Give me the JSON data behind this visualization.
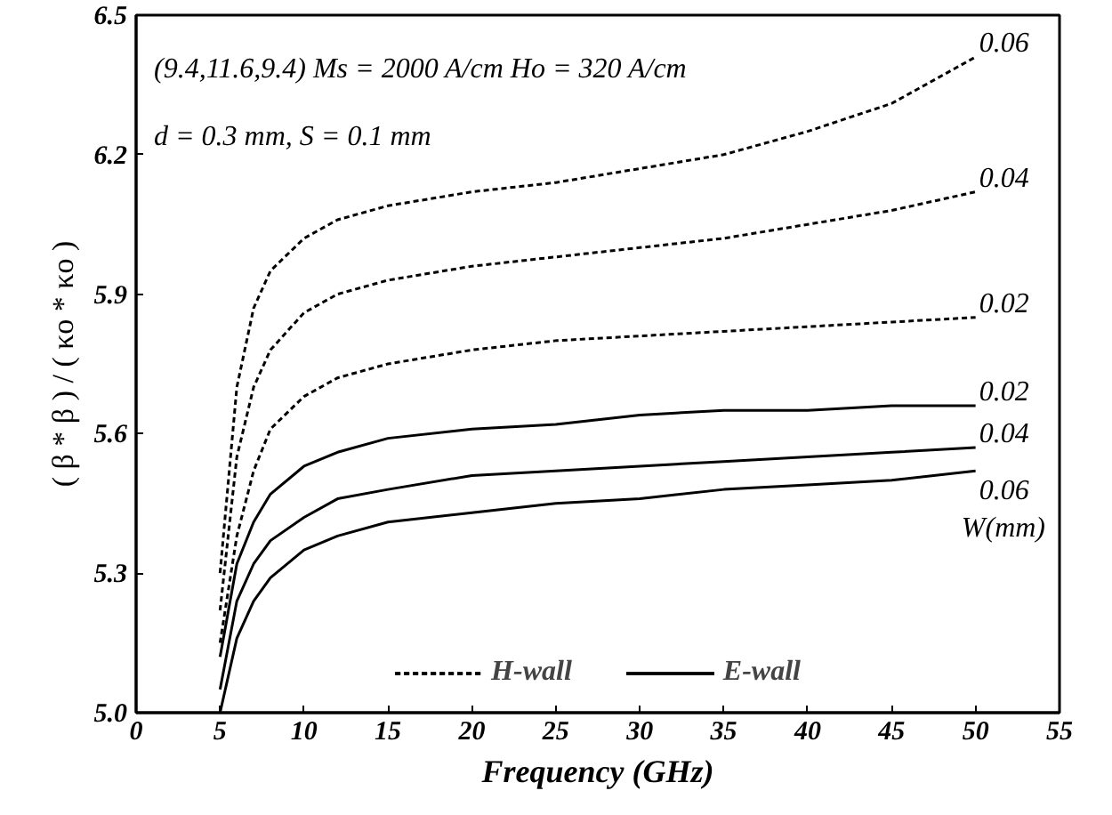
{
  "chart_data": {
    "type": "line",
    "xlabel": "Frequency (GHz)",
    "ylabel": "( β * β ) / ( κo * κo )",
    "x": [
      5,
      6,
      7,
      8,
      10,
      12,
      15,
      20,
      25,
      30,
      35,
      40,
      45,
      50
    ],
    "xlim": [
      0,
      55
    ],
    "xticks": [
      0,
      5,
      10,
      15,
      20,
      25,
      30,
      35,
      40,
      45,
      50,
      55
    ],
    "ylim": [
      5.0,
      6.5
    ],
    "yticks": [
      {
        "value": 5.0,
        "label": "5.0"
      },
      5.3,
      5.6,
      5.9,
      6.2,
      6.5
    ],
    "grid": false,
    "legend": "bottom",
    "marker": "none",
    "series": [
      {
        "name": "H-wall",
        "color": "#000000",
        "line_style": "dashed",
        "values": [
          5.3,
          5.7,
          5.87,
          5.95,
          6.02,
          6.06,
          6.09,
          6.12,
          6.14,
          6.17,
          6.2,
          6.25,
          6.31,
          6.41
        ]
      },
      {
        "color": "#000000",
        "line_style": "dashed",
        "values": [
          5.22,
          5.55,
          5.7,
          5.78,
          5.86,
          5.9,
          5.93,
          5.96,
          5.98,
          6.0,
          6.02,
          6.05,
          6.08,
          6.12
        ]
      },
      {
        "color": "#000000",
        "line_style": "dashed",
        "values": [
          5.15,
          5.38,
          5.52,
          5.61,
          5.68,
          5.72,
          5.75,
          5.78,
          5.8,
          5.81,
          5.82,
          5.83,
          5.84,
          5.85
        ]
      },
      {
        "name": "E-wall",
        "color": "#000000",
        "line_style": "solid",
        "values": [
          5.12,
          5.32,
          5.41,
          5.47,
          5.53,
          5.56,
          5.59,
          5.61,
          5.62,
          5.64,
          5.65,
          5.65,
          5.66,
          5.66
        ]
      },
      {
        "color": "#000000",
        "line_style": "solid",
        "values": [
          5.05,
          5.24,
          5.32,
          5.37,
          5.42,
          5.46,
          5.48,
          5.51,
          5.52,
          5.53,
          5.54,
          5.55,
          5.56,
          5.57
        ]
      },
      {
        "color": "#000000",
        "line_style": "solid",
        "values": [
          5.0,
          5.16,
          5.24,
          5.29,
          5.35,
          5.38,
          5.41,
          5.43,
          5.45,
          5.46,
          5.48,
          5.49,
          5.5,
          5.52
        ]
      }
    ],
    "annotations": [
      "(9.4,11.6,9.4) Ms = 2000 A/cm  Ho = 320 A/cm",
      "d = 0.3 mm, S = 0.1 mm",
      "W(mm)",
      "0.06",
      "0.04",
      "0.02",
      "0.02",
      "0.04",
      "0.06"
    ]
  }
}
